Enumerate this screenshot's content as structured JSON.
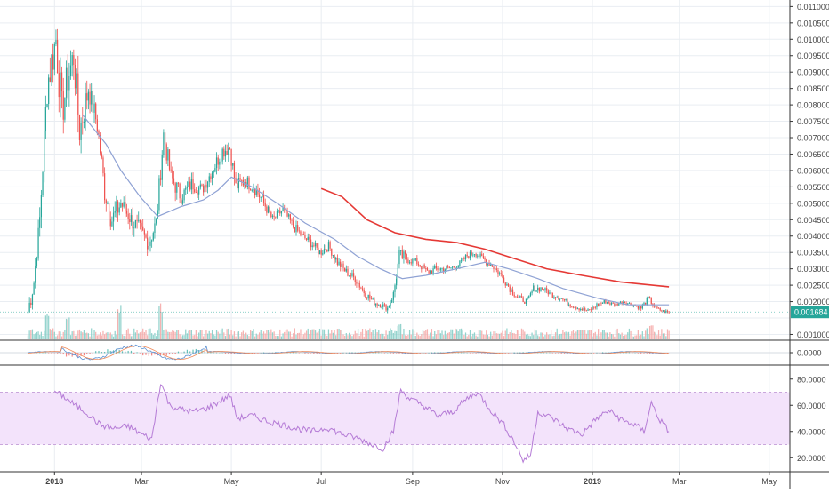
{
  "chart_data": [
    {
      "type": "candlestick",
      "pane": "price",
      "y_axis": {
        "ticks": [
          "0.011000",
          "0.010500",
          "0.010000",
          "0.009500",
          "0.009000",
          "0.008500",
          "0.008000",
          "0.007500",
          "0.007000",
          "0.006500",
          "0.006000",
          "0.005500",
          "0.005000",
          "0.004500",
          "0.004000",
          "0.003500",
          "0.003000",
          "0.002500",
          "0.002000",
          "0.001500",
          "0.001000"
        ],
        "range": [
          0.00085,
          0.0112
        ]
      },
      "last_price": {
        "label": "0.001684",
        "value": 0.001684,
        "color": "#26a69a"
      },
      "ohlc_anchors": {
        "note_keys": [
          "date",
          "close",
          "high",
          "low"
        ],
        "points": [
          [
            "2017-12-14",
            0.0017,
            0.0022,
            0.0012
          ],
          [
            "2017-12-18",
            0.0026,
            0.003,
            0.0017
          ],
          [
            "2017-12-22",
            0.0045,
            0.0048,
            0.004
          ],
          [
            "2017-12-27",
            0.0086,
            0.0093,
            0.0068
          ],
          [
            "2018-01-02",
            0.01,
            0.0104,
            0.008
          ],
          [
            "2018-01-06",
            0.0078,
            0.0099,
            0.007
          ],
          [
            "2018-01-10",
            0.0088,
            0.0094,
            0.0075
          ],
          [
            "2018-01-14",
            0.0095,
            0.0106,
            0.0084
          ],
          [
            "2018-01-18",
            0.0072,
            0.009,
            0.0066
          ],
          [
            "2018-01-24",
            0.0085,
            0.009,
            0.0076
          ],
          [
            "2018-01-30",
            0.0074,
            0.0082,
            0.007
          ],
          [
            "2018-02-04",
            0.0054,
            0.0065,
            0.005
          ],
          [
            "2018-02-09",
            0.0045,
            0.0055,
            0.004
          ],
          [
            "2018-02-15",
            0.005,
            0.0054,
            0.0044
          ],
          [
            "2018-02-22",
            0.0045,
            0.005,
            0.004
          ],
          [
            "2018-03-01",
            0.0041,
            0.0047,
            0.0036
          ],
          [
            "2018-03-06",
            0.0038,
            0.0043,
            0.0034
          ],
          [
            "2018-03-11",
            0.0044,
            0.0049,
            0.0037
          ],
          [
            "2018-03-16",
            0.0071,
            0.0077,
            0.0066
          ],
          [
            "2018-03-21",
            0.0058,
            0.0068,
            0.0055
          ],
          [
            "2018-03-28",
            0.0052,
            0.0057,
            0.0049
          ],
          [
            "2018-04-04",
            0.0056,
            0.006,
            0.0051
          ],
          [
            "2018-04-11",
            0.0054,
            0.0058,
            0.0051
          ],
          [
            "2018-04-18",
            0.006,
            0.0064,
            0.0056
          ],
          [
            "2018-04-25",
            0.0066,
            0.007,
            0.0061
          ],
          [
            "2018-04-30",
            0.0067,
            0.0072,
            0.0064
          ],
          [
            "2018-05-04",
            0.0055,
            0.0063,
            0.0052
          ],
          [
            "2018-05-10",
            0.0057,
            0.0061,
            0.0054
          ],
          [
            "2018-05-16",
            0.0055,
            0.006,
            0.0052
          ],
          [
            "2018-05-22",
            0.0051,
            0.0055,
            0.0048
          ],
          [
            "2018-05-29",
            0.0045,
            0.0049,
            0.0043
          ],
          [
            "2018-06-05",
            0.0048,
            0.005,
            0.0045
          ],
          [
            "2018-06-12",
            0.0043,
            0.0047,
            0.0041
          ],
          [
            "2018-06-18",
            0.004,
            0.0043,
            0.0038
          ],
          [
            "2018-06-24",
            0.0038,
            0.0041,
            0.0036
          ],
          [
            "2018-06-30",
            0.0035,
            0.0039,
            0.0033
          ],
          [
            "2018-07-06",
            0.0037,
            0.0039,
            0.0034
          ],
          [
            "2018-07-12",
            0.0032,
            0.0035,
            0.003
          ],
          [
            "2018-07-18",
            0.0029,
            0.0032,
            0.0027
          ],
          [
            "2018-07-24",
            0.0027,
            0.003,
            0.0025
          ],
          [
            "2018-07-30",
            0.0023,
            0.0026,
            0.0021
          ],
          [
            "2018-08-05",
            0.002,
            0.0022,
            0.0018
          ],
          [
            "2018-08-11",
            0.0019,
            0.0021,
            0.0017
          ],
          [
            "2018-08-15",
            0.0018,
            0.002,
            0.0017
          ],
          [
            "2018-08-19",
            0.0022,
            0.0023,
            0.0019
          ],
          [
            "2018-08-23",
            0.0034,
            0.0036,
            0.0026
          ],
          [
            "2018-08-28",
            0.0033,
            0.0036,
            0.0031
          ],
          [
            "2018-09-04",
            0.0032,
            0.0034,
            0.003
          ],
          [
            "2018-09-11",
            0.0029,
            0.0032,
            0.0027
          ],
          [
            "2018-09-18",
            0.003,
            0.0032,
            0.0028
          ],
          [
            "2018-09-25",
            0.003,
            0.0031,
            0.0028
          ],
          [
            "2018-10-02",
            0.0031,
            0.0033,
            0.0029
          ],
          [
            "2018-10-08",
            0.0034,
            0.0036,
            0.0032
          ],
          [
            "2018-10-13",
            0.0035,
            0.0036,
            0.0033
          ],
          [
            "2018-10-19",
            0.0033,
            0.0035,
            0.0031
          ],
          [
            "2018-10-25",
            0.0031,
            0.0033,
            0.0029
          ],
          [
            "2018-10-31",
            0.0028,
            0.003,
            0.0026
          ],
          [
            "2018-11-06",
            0.0024,
            0.0026,
            0.0022
          ],
          [
            "2018-11-12",
            0.0021,
            0.0023,
            0.0019
          ],
          [
            "2018-11-18",
            0.002,
            0.0022,
            0.0019
          ],
          [
            "2018-11-22",
            0.0024,
            0.0026,
            0.0021
          ],
          [
            "2018-11-28",
            0.0024,
            0.0025,
            0.0022
          ],
          [
            "2018-12-05",
            0.0022,
            0.0024,
            0.0021
          ],
          [
            "2018-12-11",
            0.0021,
            0.0023,
            0.002
          ],
          [
            "2018-12-17",
            0.0019,
            0.0021,
            0.0018
          ],
          [
            "2018-12-23",
            0.0018,
            0.0019,
            0.0017
          ],
          [
            "2018-12-29",
            0.0017,
            0.0019,
            0.0016
          ],
          [
            "2019-01-04",
            0.0019,
            0.002,
            0.0017
          ],
          [
            "2019-01-10",
            0.002,
            0.0021,
            0.0018
          ],
          [
            "2019-01-16",
            0.0019,
            0.002,
            0.0018
          ],
          [
            "2019-01-22",
            0.002,
            0.0021,
            0.0019
          ],
          [
            "2019-01-28",
            0.0019,
            0.002,
            0.0018
          ],
          [
            "2019-02-03",
            0.0018,
            0.0019,
            0.0017
          ],
          [
            "2019-02-08",
            0.0021,
            0.0022,
            0.0018
          ],
          [
            "2019-02-13",
            0.0018,
            0.0019,
            0.0017
          ],
          [
            "2019-02-18",
            0.0017,
            0.0018,
            0.0016
          ],
          [
            "2019-02-22",
            0.001684,
            0.0018,
            0.0016
          ]
        ]
      },
      "moving_average_50": [
        [
          "2018-01-20",
          0.0077
        ],
        [
          "2018-01-27",
          0.0073
        ],
        [
          "2018-02-05",
          0.0068
        ],
        [
          "2018-02-15",
          0.006
        ],
        [
          "2018-02-28",
          0.0052
        ],
        [
          "2018-03-12",
          0.0046
        ],
        [
          "2018-03-28",
          0.0049
        ],
        [
          "2018-04-12",
          0.0051
        ],
        [
          "2018-04-22",
          0.0054
        ],
        [
          "2018-05-01",
          0.0058
        ],
        [
          "2018-05-15",
          0.0055
        ],
        [
          "2018-06-01",
          0.005
        ],
        [
          "2018-06-20",
          0.0044
        ],
        [
          "2018-07-10",
          0.0039
        ],
        [
          "2018-07-25",
          0.0034
        ],
        [
          "2018-08-10",
          0.003
        ],
        [
          "2018-08-25",
          0.0027
        ],
        [
          "2018-09-10",
          0.0028
        ],
        [
          "2018-10-01",
          0.003
        ],
        [
          "2018-10-20",
          0.0032
        ],
        [
          "2018-11-05",
          0.003
        ],
        [
          "2018-11-25",
          0.0027
        ],
        [
          "2018-12-12",
          0.0024
        ],
        [
          "2019-01-05",
          0.0021
        ],
        [
          "2019-01-25",
          0.0019
        ],
        [
          "2019-02-22",
          0.0019
        ]
      ],
      "moving_average_200": [
        [
          "2018-07-01",
          0.00545
        ],
        [
          "2018-07-15",
          0.0052
        ],
        [
          "2018-08-01",
          0.0045
        ],
        [
          "2018-08-20",
          0.0041
        ],
        [
          "2018-09-10",
          0.0039
        ],
        [
          "2018-10-01",
          0.0038
        ],
        [
          "2018-10-20",
          0.0036
        ],
        [
          "2018-11-10",
          0.0033
        ],
        [
          "2018-12-01",
          0.003
        ],
        [
          "2018-12-25",
          0.0028
        ],
        [
          "2019-01-20",
          0.0026
        ],
        [
          "2019-02-22",
          0.00245
        ]
      ]
    },
    {
      "type": "bar",
      "pane": "volume",
      "series_note": "relative volume per candle, shown as a fraction of pane height",
      "spikes": [
        [
          "2017-12-27",
          0.85
        ],
        [
          "2018-01-10",
          0.6
        ],
        [
          "2018-02-14",
          1.0
        ],
        [
          "2018-03-14",
          1.0
        ],
        [
          "2018-08-23",
          0.5
        ],
        [
          "2019-02-10",
          0.45
        ]
      ],
      "baseline_level": 0.25
    },
    {
      "type": "line",
      "pane": "macd",
      "y_axis": {
        "ticks": [
          "0.0000"
        ],
        "range": [
          -0.0006,
          0.0006
        ]
      },
      "note": "MACD near zero through most of the period"
    },
    {
      "type": "line",
      "pane": "rsi",
      "y_axis": {
        "ticks": [
          "80.0000",
          "60.0000",
          "40.0000",
          "20.0000"
        ],
        "range": [
          10,
          90
        ]
      },
      "band": [
        30,
        70
      ],
      "points": [
        [
          "2018-01-01",
          71
        ],
        [
          "2018-01-08",
          66
        ],
        [
          "2018-01-15",
          60
        ],
        [
          "2018-01-22",
          55
        ],
        [
          "2018-02-01",
          45
        ],
        [
          "2018-02-10",
          42
        ],
        [
          "2018-02-20",
          44
        ],
        [
          "2018-03-01",
          38
        ],
        [
          "2018-03-08",
          34
        ],
        [
          "2018-03-14",
          78
        ],
        [
          "2018-03-20",
          60
        ],
        [
          "2018-03-27",
          57
        ],
        [
          "2018-04-05",
          55
        ],
        [
          "2018-04-15",
          58
        ],
        [
          "2018-04-25",
          64
        ],
        [
          "2018-04-30",
          68
        ],
        [
          "2018-05-05",
          50
        ],
        [
          "2018-05-15",
          52
        ],
        [
          "2018-05-25",
          48
        ],
        [
          "2018-06-05",
          45
        ],
        [
          "2018-06-15",
          42
        ],
        [
          "2018-06-25",
          40
        ],
        [
          "2018-07-05",
          43
        ],
        [
          "2018-07-15",
          38
        ],
        [
          "2018-07-25",
          35
        ],
        [
          "2018-08-05",
          30
        ],
        [
          "2018-08-12",
          27
        ],
        [
          "2018-08-19",
          40
        ],
        [
          "2018-08-24",
          72
        ],
        [
          "2018-08-30",
          65
        ],
        [
          "2018-09-08",
          60
        ],
        [
          "2018-09-18",
          52
        ],
        [
          "2018-09-28",
          55
        ],
        [
          "2018-10-08",
          65
        ],
        [
          "2018-10-15",
          70
        ],
        [
          "2018-10-25",
          55
        ],
        [
          "2018-11-02",
          45
        ],
        [
          "2018-11-10",
          30
        ],
        [
          "2018-11-15",
          18
        ],
        [
          "2018-11-20",
          22
        ],
        [
          "2018-11-25",
          55
        ],
        [
          "2018-12-05",
          50
        ],
        [
          "2018-12-15",
          42
        ],
        [
          "2018-12-25",
          38
        ],
        [
          "2019-01-04",
          50
        ],
        [
          "2019-01-12",
          56
        ],
        [
          "2019-01-22",
          48
        ],
        [
          "2019-01-30",
          45
        ],
        [
          "2019-02-05",
          40
        ],
        [
          "2019-02-10",
          62
        ],
        [
          "2019-02-15",
          50
        ],
        [
          "2019-02-22",
          40
        ]
      ]
    }
  ],
  "x_axis": {
    "ticks": [
      {
        "label": "2018",
        "date": "2018-01-01",
        "bold": true
      },
      {
        "label": "Mar",
        "date": "2018-03-01"
      },
      {
        "label": "May",
        "date": "2018-05-01"
      },
      {
        "label": "Jul",
        "date": "2018-07-01"
      },
      {
        "label": "Sep",
        "date": "2018-09-01"
      },
      {
        "label": "Nov",
        "date": "2018-11-01"
      },
      {
        "label": "2019",
        "date": "2019-01-01",
        "bold": true
      },
      {
        "label": "Mar",
        "date": "2019-03-01"
      },
      {
        "label": "May",
        "date": "2019-05-01"
      }
    ]
  },
  "colors": {
    "up": "#26a69a",
    "down": "#ef5350",
    "ma_short": "#8fa2d4",
    "ma_long": "#e53935",
    "rsi_line": "#b57bd6",
    "rsi_band": "#f3e3fb",
    "grid": "#e9edf2",
    "axis_text": "#444444"
  }
}
